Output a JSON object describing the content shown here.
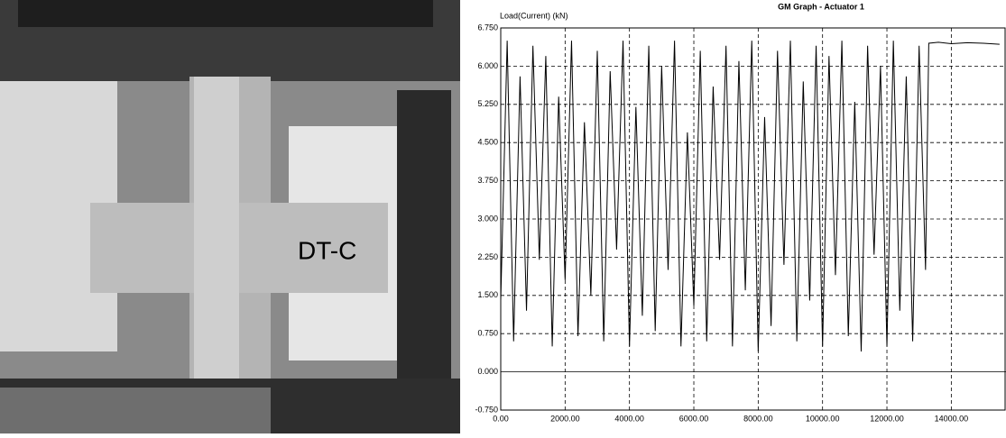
{
  "chart_data": {
    "type": "line",
    "title": "GM Graph - Actuator 1",
    "y_label": "Load(Current) (kN)",
    "color": "#000000",
    "grid": true,
    "x": [
      0,
      200,
      400,
      600,
      800,
      1000,
      1200,
      1400,
      1600,
      1800,
      2000,
      2200,
      2400,
      2600,
      2800,
      3000,
      3200,
      3400,
      3600,
      3800,
      4000,
      4200,
      4400,
      4600,
      4800,
      5000,
      5200,
      5400,
      5600,
      5800,
      6000,
      6200,
      6400,
      6600,
      6800,
      7000,
      7200,
      7400,
      7600,
      7800,
      8000,
      8200,
      8400,
      8600,
      8800,
      9000,
      9200,
      9400,
      9600,
      9800,
      10000,
      10200,
      10400,
      10600,
      10800,
      11000,
      11200,
      11400,
      11600,
      11800,
      12000,
      12200,
      12400,
      12600,
      12800,
      13000,
      13200,
      13300,
      13600,
      14000,
      14500,
      15000,
      15500
    ],
    "values": [
      1.4,
      6.5,
      0.6,
      5.8,
      1.2,
      6.4,
      2.2,
      6.2,
      0.5,
      5.4,
      1.8,
      6.5,
      0.7,
      4.9,
      1.5,
      6.3,
      0.6,
      5.9,
      2.4,
      6.5,
      0.5,
      5.2,
      1.1,
      6.4,
      0.8,
      6.0,
      2.0,
      6.5,
      0.5,
      4.7,
      1.3,
      6.3,
      0.6,
      5.6,
      2.2,
      6.4,
      0.5,
      6.1,
      1.6,
      6.5,
      0.4,
      5.0,
      0.9,
      6.3,
      2.1,
      6.5,
      0.6,
      5.7,
      1.4,
      6.4,
      0.5,
      6.2,
      1.9,
      6.5,
      0.7,
      5.3,
      0.4,
      6.4,
      2.3,
      6.0,
      0.5,
      6.5,
      1.2,
      5.8,
      0.6,
      6.4,
      2.0,
      6.45,
      6.47,
      6.44,
      6.46,
      6.45,
      6.43
    ],
    "xlim": [
      0,
      15700
    ],
    "ylim": [
      -0.75,
      6.75
    ],
    "xticks": [
      {
        "value": 0,
        "label": "0.00"
      },
      {
        "value": 2000,
        "label": "2000.00"
      },
      {
        "value": 4000,
        "label": "4000.00"
      },
      {
        "value": 6000,
        "label": "6000.00"
      },
      {
        "value": 8000,
        "label": "8000.00"
      },
      {
        "value": 10000,
        "label": "10000.00"
      },
      {
        "value": 12000,
        "label": "12000.00"
      },
      {
        "value": 14000,
        "label": "14000.00"
      }
    ],
    "yticks": [
      {
        "value": -0.75,
        "label": "-0.750"
      },
      {
        "value": 0,
        "label": "0.000"
      },
      {
        "value": 0.75,
        "label": "0.750"
      },
      {
        "value": 1.5,
        "label": "1.500"
      },
      {
        "value": 2.25,
        "label": "2.250"
      },
      {
        "value": 3,
        "label": "3.000"
      },
      {
        "value": 3.75,
        "label": "3.750"
      },
      {
        "value": 4.5,
        "label": "4.500"
      },
      {
        "value": 5.25,
        "label": "5.250"
      },
      {
        "value": 6,
        "label": "6.000"
      },
      {
        "value": 6.75,
        "label": "6.750"
      }
    ]
  }
}
